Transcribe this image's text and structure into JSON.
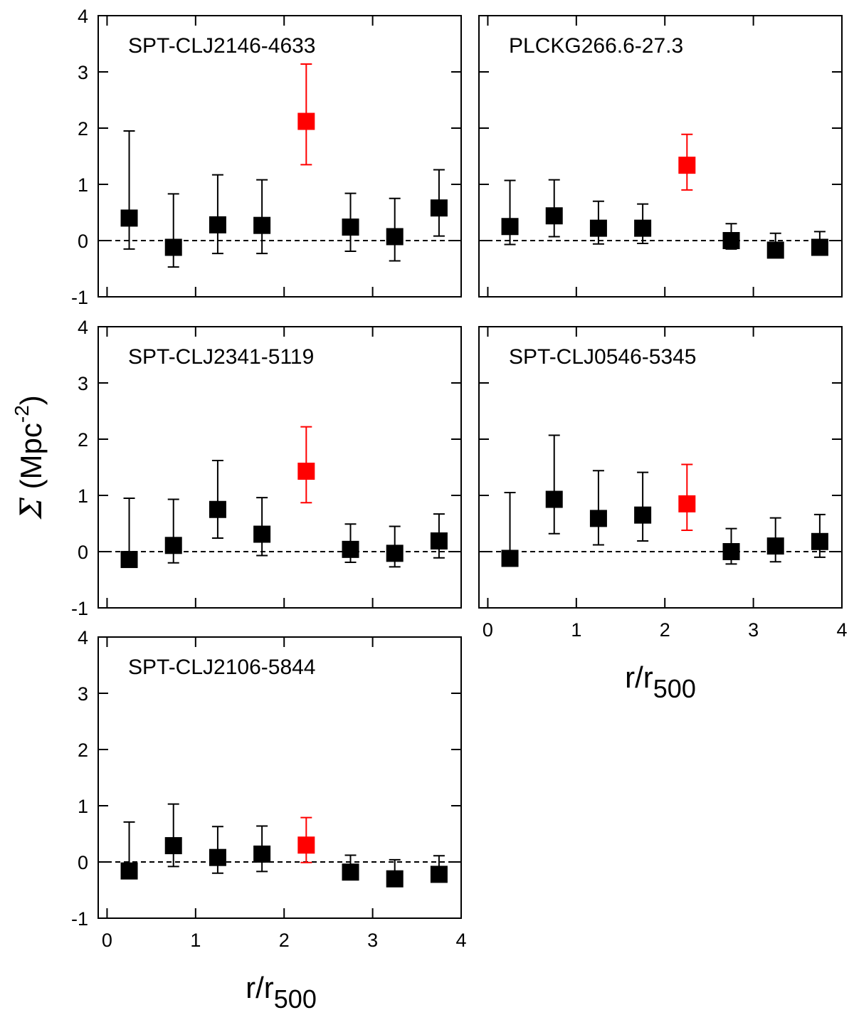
{
  "y_axis_label": {
    "symbol": "Σ",
    "open": " (Mpc",
    "exp": "-2",
    "close": ")"
  },
  "x_axis_label": {
    "base": "r/r",
    "sub": "500"
  },
  "colors": {
    "normal": "#000000",
    "highlight": "#ff0000"
  },
  "chart_data": [
    {
      "type": "scatter",
      "title": "SPT-CLJ2146-4633",
      "xlim": [
        -0.1,
        4
      ],
      "ylim": [
        -1,
        4
      ],
      "xticks": [
        0,
        1,
        2,
        3,
        4
      ],
      "yticks": [
        -1,
        0,
        1,
        2,
        3,
        4
      ],
      "reference_line_y": 0,
      "points": [
        {
          "x": 0.25,
          "y": 0.4,
          "lo": -0.15,
          "hi": 1.95,
          "highlight": false
        },
        {
          "x": 0.75,
          "y": -0.12,
          "lo": -0.47,
          "hi": 0.83,
          "highlight": false
        },
        {
          "x": 1.25,
          "y": 0.28,
          "lo": -0.23,
          "hi": 1.17,
          "highlight": false
        },
        {
          "x": 1.75,
          "y": 0.27,
          "lo": -0.23,
          "hi": 1.08,
          "highlight": false
        },
        {
          "x": 2.25,
          "y": 2.12,
          "lo": 1.35,
          "hi": 3.14,
          "highlight": true
        },
        {
          "x": 2.75,
          "y": 0.24,
          "lo": -0.19,
          "hi": 0.84,
          "highlight": false
        },
        {
          "x": 3.25,
          "y": 0.07,
          "lo": -0.36,
          "hi": 0.75,
          "highlight": false
        },
        {
          "x": 3.75,
          "y": 0.58,
          "lo": 0.08,
          "hi": 1.26,
          "highlight": false
        }
      ]
    },
    {
      "type": "scatter",
      "title": "PLCKG266.6-27.3",
      "xlim": [
        -0.1,
        4
      ],
      "ylim": [
        -1,
        4
      ],
      "xticks": [
        0,
        1,
        2,
        3,
        4
      ],
      "yticks": [
        -1,
        0,
        1,
        2,
        3,
        4
      ],
      "reference_line_y": 0,
      "points": [
        {
          "x": 0.25,
          "y": 0.25,
          "lo": -0.07,
          "hi": 1.07,
          "highlight": false
        },
        {
          "x": 0.75,
          "y": 0.44,
          "lo": 0.07,
          "hi": 1.08,
          "highlight": false
        },
        {
          "x": 1.25,
          "y": 0.22,
          "lo": -0.06,
          "hi": 0.7,
          "highlight": false
        },
        {
          "x": 1.75,
          "y": 0.22,
          "lo": -0.05,
          "hi": 0.65,
          "highlight": false
        },
        {
          "x": 2.25,
          "y": 1.34,
          "lo": 0.9,
          "hi": 1.89,
          "highlight": true
        },
        {
          "x": 2.75,
          "y": 0.0,
          "lo": -0.15,
          "hi": 0.3,
          "highlight": false
        },
        {
          "x": 3.25,
          "y": -0.17,
          "lo": -0.29,
          "hi": 0.13,
          "highlight": false
        },
        {
          "x": 3.75,
          "y": -0.12,
          "lo": -0.26,
          "hi": 0.16,
          "highlight": false
        }
      ]
    },
    {
      "type": "scatter",
      "title": "SPT-CLJ2341-5119",
      "xlim": [
        -0.1,
        4
      ],
      "ylim": [
        -1,
        4
      ],
      "xticks": [
        0,
        1,
        2,
        3,
        4
      ],
      "yticks": [
        -1,
        0,
        1,
        2,
        3,
        4
      ],
      "reference_line_y": 0,
      "points": [
        {
          "x": 0.25,
          "y": -0.14,
          "lo": -0.25,
          "hi": 0.95,
          "highlight": false
        },
        {
          "x": 0.75,
          "y": 0.11,
          "lo": -0.2,
          "hi": 0.93,
          "highlight": false
        },
        {
          "x": 1.25,
          "y": 0.75,
          "lo": 0.24,
          "hi": 1.62,
          "highlight": false
        },
        {
          "x": 1.75,
          "y": 0.31,
          "lo": -0.07,
          "hi": 0.96,
          "highlight": false
        },
        {
          "x": 2.25,
          "y": 1.43,
          "lo": 0.87,
          "hi": 2.22,
          "highlight": true
        },
        {
          "x": 2.75,
          "y": 0.04,
          "lo": -0.19,
          "hi": 0.49,
          "highlight": false
        },
        {
          "x": 3.25,
          "y": -0.03,
          "lo": -0.27,
          "hi": 0.45,
          "highlight": false
        },
        {
          "x": 3.75,
          "y": 0.19,
          "lo": -0.11,
          "hi": 0.67,
          "highlight": false
        }
      ]
    },
    {
      "type": "scatter",
      "title": "SPT-CLJ0546-5345",
      "xlim": [
        -0.1,
        4
      ],
      "ylim": [
        -1,
        4
      ],
      "xticks": [
        0,
        1,
        2,
        3,
        4
      ],
      "yticks": [
        -1,
        0,
        1,
        2,
        3,
        4
      ],
      "reference_line_y": 0,
      "points": [
        {
          "x": 0.25,
          "y": -0.12,
          "lo": -0.25,
          "hi": 1.05,
          "highlight": false
        },
        {
          "x": 0.75,
          "y": 0.93,
          "lo": 0.32,
          "hi": 2.07,
          "highlight": false
        },
        {
          "x": 1.25,
          "y": 0.59,
          "lo": 0.12,
          "hi": 1.44,
          "highlight": false
        },
        {
          "x": 1.75,
          "y": 0.65,
          "lo": 0.19,
          "hi": 1.41,
          "highlight": false
        },
        {
          "x": 2.25,
          "y": 0.85,
          "lo": 0.38,
          "hi": 1.55,
          "highlight": true
        },
        {
          "x": 2.75,
          "y": 0.0,
          "lo": -0.22,
          "hi": 0.41,
          "highlight": false
        },
        {
          "x": 3.25,
          "y": 0.1,
          "lo": -0.18,
          "hi": 0.6,
          "highlight": false
        },
        {
          "x": 3.75,
          "y": 0.18,
          "lo": -0.1,
          "hi": 0.66,
          "highlight": false
        }
      ]
    },
    {
      "type": "scatter",
      "title": "SPT-CLJ2106-5844",
      "xlim": [
        -0.1,
        4
      ],
      "ylim": [
        -1,
        4
      ],
      "xticks": [
        0,
        1,
        2,
        3,
        4
      ],
      "yticks": [
        -1,
        0,
        1,
        2,
        3,
        4
      ],
      "reference_line_y": 0,
      "points": [
        {
          "x": 0.25,
          "y": -0.16,
          "lo": -0.25,
          "hi": 0.71,
          "highlight": false
        },
        {
          "x": 0.75,
          "y": 0.29,
          "lo": -0.08,
          "hi": 1.03,
          "highlight": false
        },
        {
          "x": 1.25,
          "y": 0.08,
          "lo": -0.2,
          "hi": 0.63,
          "highlight": false
        },
        {
          "x": 1.75,
          "y": 0.14,
          "lo": -0.17,
          "hi": 0.64,
          "highlight": false
        },
        {
          "x": 2.25,
          "y": 0.3,
          "lo": -0.01,
          "hi": 0.79,
          "highlight": true
        },
        {
          "x": 2.75,
          "y": -0.18,
          "lo": -0.3,
          "hi": 0.12,
          "highlight": false
        },
        {
          "x": 3.25,
          "y": -0.3,
          "lo": -0.4,
          "hi": 0.04,
          "highlight": false
        },
        {
          "x": 3.75,
          "y": -0.22,
          "lo": -0.35,
          "hi": 0.11,
          "highlight": false
        }
      ]
    }
  ]
}
